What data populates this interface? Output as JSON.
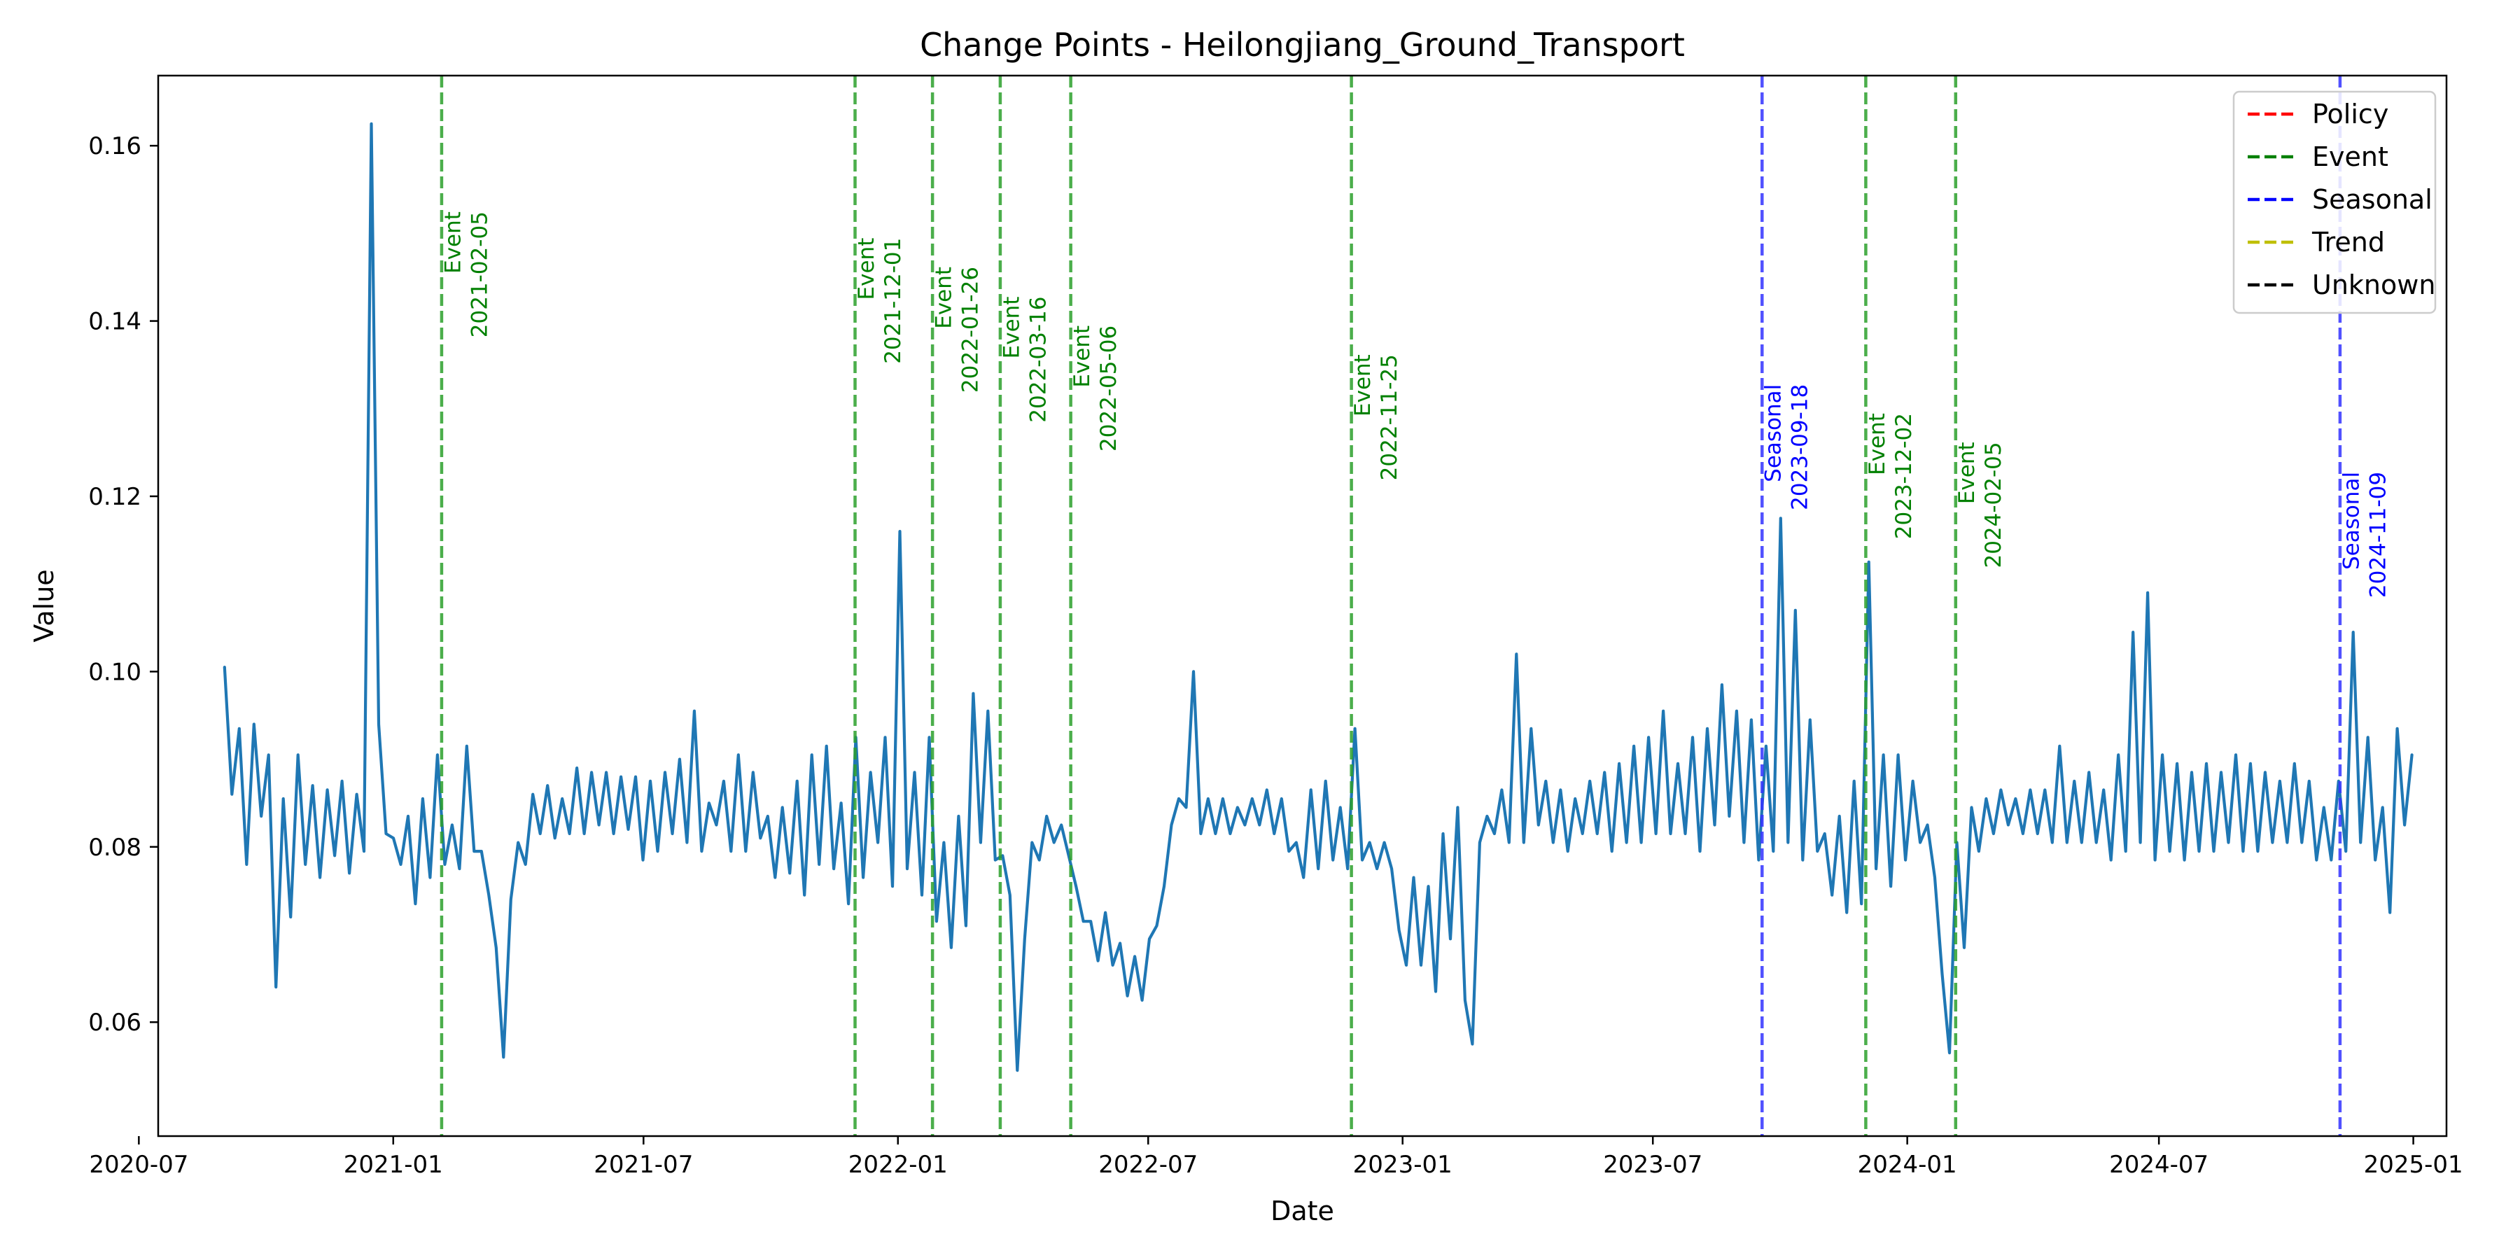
{
  "chart_data": {
    "type": "line",
    "title": "Change Points - Heilongjiang_Ground_Transport",
    "xlabel": "Date",
    "ylabel": "Value",
    "x_range": [
      "2020-07-15",
      "2025-01-25"
    ],
    "ylim": [
      0.047,
      0.168
    ],
    "x_ticks": [
      "2020-07",
      "2021-01",
      "2021-07",
      "2022-01",
      "2022-07",
      "2023-01",
      "2023-07",
      "2024-01",
      "2024-07",
      "2025-01"
    ],
    "y_ticks": [
      0.06,
      0.08,
      0.1,
      0.12,
      0.14,
      0.16
    ],
    "y_tick_labels": [
      "0.06",
      "0.08",
      "0.10",
      "0.12",
      "0.14",
      "0.16"
    ],
    "grid": false,
    "legend_placement": "top-right",
    "legend": [
      {
        "label": "Policy",
        "color": "#ff0000"
      },
      {
        "label": "Event",
        "color": "#008000"
      },
      {
        "label": "Seasonal",
        "color": "#0000ff"
      },
      {
        "label": "Trend",
        "color": "#bfbf00"
      },
      {
        "label": "Unknown",
        "color": "#000000"
      }
    ],
    "series": [
      {
        "color": "#1f77b4",
        "x_start": "2020-09-01",
        "x_end": "2024-12-31",
        "x_step_days": 7,
        "values": [
          0.1005,
          0.086,
          0.0935,
          0.078,
          0.094,
          0.0835,
          0.0905,
          0.064,
          0.0855,
          0.072,
          0.0905,
          0.078,
          0.087,
          0.0765,
          0.0865,
          0.079,
          0.0875,
          0.077,
          0.086,
          0.0795,
          0.1625,
          0.094,
          0.0815,
          0.081,
          0.078,
          0.0835,
          0.0735,
          0.0855,
          0.0765,
          0.0905,
          0.078,
          0.0825,
          0.0775,
          0.0915,
          0.0795,
          0.0795,
          0.0745,
          0.0685,
          0.056,
          0.074,
          0.0805,
          0.078,
          0.086,
          0.0815,
          0.087,
          0.081,
          0.0855,
          0.0815,
          0.089,
          0.0815,
          0.0885,
          0.0825,
          0.0885,
          0.0815,
          0.088,
          0.082,
          0.088,
          0.0785,
          0.0875,
          0.0795,
          0.0885,
          0.0815,
          0.09,
          0.0805,
          0.0955,
          0.0795,
          0.085,
          0.0825,
          0.0875,
          0.0795,
          0.0905,
          0.0795,
          0.0885,
          0.081,
          0.0835,
          0.0765,
          0.0845,
          0.077,
          0.0875,
          0.0745,
          0.0905,
          0.078,
          0.0915,
          0.0775,
          0.085,
          0.0735,
          0.0925,
          0.0765,
          0.0885,
          0.0805,
          0.0925,
          0.0755,
          0.116,
          0.0775,
          0.0885,
          0.0745,
          0.0925,
          0.0715,
          0.0805,
          0.0685,
          0.0835,
          0.071,
          0.0975,
          0.0805,
          0.0955,
          0.0785,
          0.079,
          0.0745,
          0.0545,
          0.0695,
          0.0805,
          0.0785,
          0.0835,
          0.0805,
          0.0825,
          0.079,
          0.0755,
          0.0715,
          0.0715,
          0.067,
          0.0725,
          0.0665,
          0.069,
          0.063,
          0.0675,
          0.0625,
          0.0695,
          0.071,
          0.0755,
          0.0825,
          0.0855,
          0.0845,
          0.1,
          0.0815,
          0.0855,
          0.0815,
          0.0855,
          0.0815,
          0.0845,
          0.0825,
          0.0855,
          0.0825,
          0.0865,
          0.0815,
          0.0855,
          0.0795,
          0.0805,
          0.0765,
          0.0865,
          0.0775,
          0.0875,
          0.0785,
          0.0845,
          0.0775,
          0.0935,
          0.0785,
          0.0805,
          0.0775,
          0.0805,
          0.0775,
          0.0705,
          0.0665,
          0.0765,
          0.0665,
          0.0755,
          0.0635,
          0.0815,
          0.0695,
          0.0845,
          0.0625,
          0.0575,
          0.0805,
          0.0835,
          0.0815,
          0.0865,
          0.0805,
          0.102,
          0.0805,
          0.0935,
          0.0825,
          0.0875,
          0.0805,
          0.0865,
          0.0795,
          0.0855,
          0.0815,
          0.0875,
          0.0815,
          0.0885,
          0.0795,
          0.0895,
          0.0805,
          0.0915,
          0.0805,
          0.0925,
          0.0815,
          0.0955,
          0.0815,
          0.0895,
          0.0815,
          0.0925,
          0.0795,
          0.0935,
          0.0825,
          0.0985,
          0.0835,
          0.0955,
          0.0805,
          0.0945,
          0.0785,
          0.0915,
          0.0795,
          0.1175,
          0.0805,
          0.107,
          0.0785,
          0.0945,
          0.0795,
          0.0815,
          0.0745,
          0.0835,
          0.0725,
          0.0875,
          0.0735,
          0.1125,
          0.0775,
          0.0905,
          0.0755,
          0.0905,
          0.0785,
          0.0875,
          0.0805,
          0.0825,
          0.0765,
          0.0655,
          0.0565,
          0.0805,
          0.0685,
          0.0845,
          0.0795,
          0.0855,
          0.0815,
          0.0865,
          0.0825,
          0.0855,
          0.0815,
          0.0865,
          0.0815,
          0.0865,
          0.0805,
          0.0915,
          0.0805,
          0.0875,
          0.0805,
          0.0885,
          0.0805,
          0.0865,
          0.0785,
          0.0905,
          0.0795,
          0.1045,
          0.0805,
          0.109,
          0.0785,
          0.0905,
          0.0795,
          0.0895,
          0.0785,
          0.0885,
          0.0795,
          0.0895,
          0.0795,
          0.0885,
          0.0805,
          0.0905,
          0.0795,
          0.0895,
          0.0795,
          0.0885,
          0.0805,
          0.0875,
          0.0805,
          0.0895,
          0.0805,
          0.0875,
          0.0785,
          0.0845,
          0.0785,
          0.0875,
          0.0795,
          0.1045,
          0.0805,
          0.0925,
          0.0785,
          0.0845,
          0.0725,
          0.0935,
          0.0825,
          0.0905
        ]
      }
    ],
    "change_points": [
      {
        "date": "2021-02-05",
        "type": "Event",
        "color": "#2ca02c",
        "text_color": "#008000",
        "label_top_value": 0.1525
      },
      {
        "date": "2021-12-01",
        "type": "Event",
        "color": "#2ca02c",
        "text_color": "#008000",
        "label_top_value": 0.1495
      },
      {
        "date": "2022-01-26",
        "type": "Event",
        "color": "#2ca02c",
        "text_color": "#008000",
        "label_top_value": 0.1462
      },
      {
        "date": "2022-03-16",
        "type": "Event",
        "color": "#2ca02c",
        "text_color": "#008000",
        "label_top_value": 0.1428
      },
      {
        "date": "2022-05-06",
        "type": "Event",
        "color": "#2ca02c",
        "text_color": "#008000",
        "label_top_value": 0.1395
      },
      {
        "date": "2022-11-25",
        "type": "Event",
        "color": "#2ca02c",
        "text_color": "#008000",
        "label_top_value": 0.1362
      },
      {
        "date": "2023-09-18",
        "type": "Seasonal",
        "color": "#3333ff",
        "text_color": "#0000ff",
        "label_top_value": 0.1328
      },
      {
        "date": "2023-12-02",
        "type": "Event",
        "color": "#2ca02c",
        "text_color": "#008000",
        "label_top_value": 0.1295
      },
      {
        "date": "2024-02-05",
        "type": "Event",
        "color": "#2ca02c",
        "text_color": "#008000",
        "label_top_value": 0.1262
      },
      {
        "date": "2024-11-09",
        "type": "Seasonal",
        "color": "#3333ff",
        "text_color": "#0000ff",
        "label_top_value": 0.1228
      }
    ]
  }
}
